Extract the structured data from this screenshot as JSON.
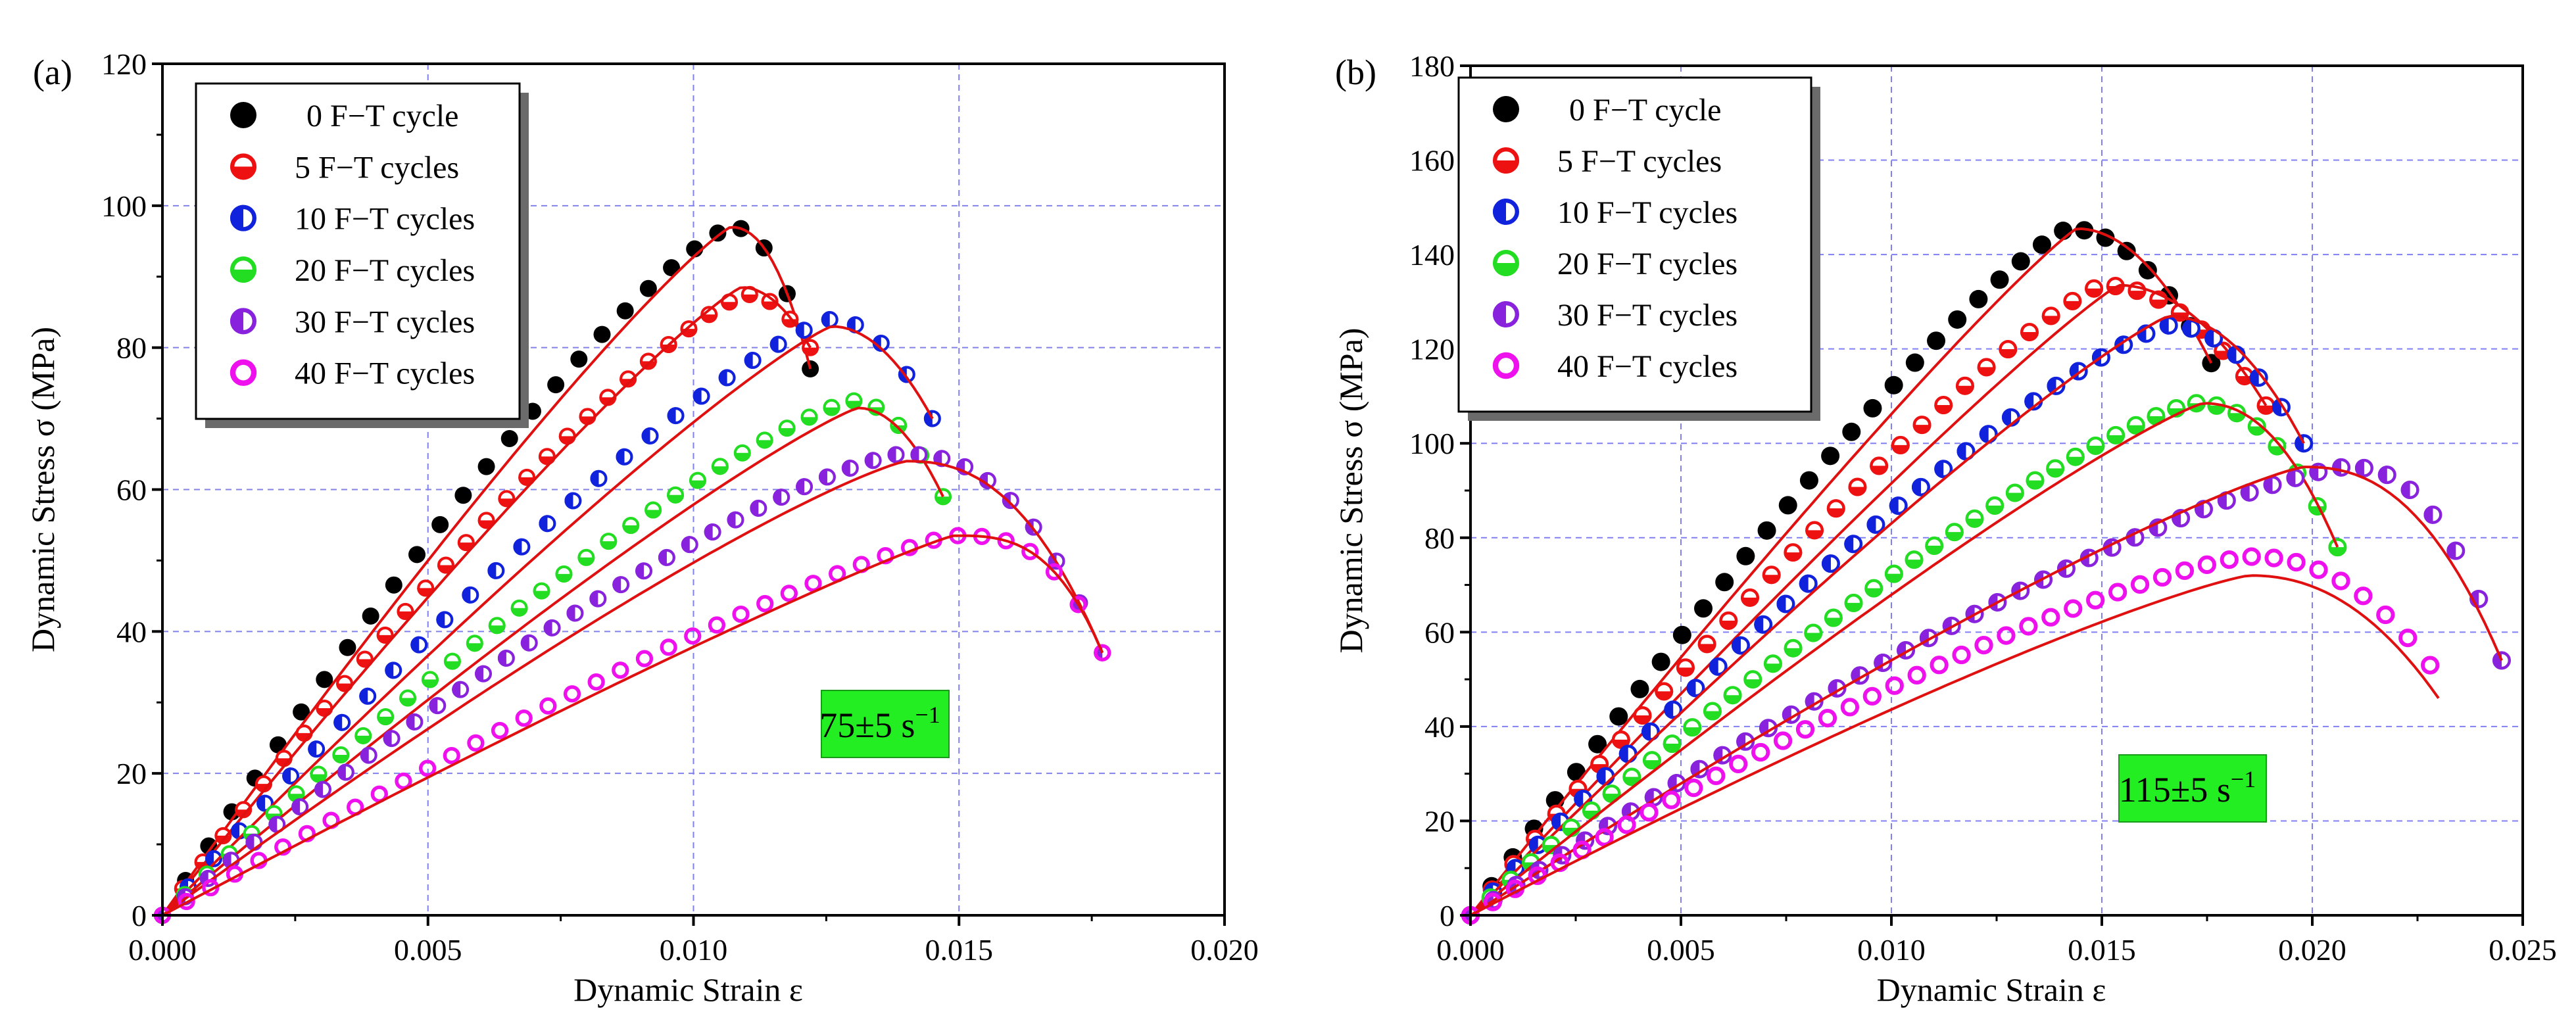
{
  "chart_data": [
    {
      "type": "scatter",
      "panel_label": "(a)",
      "xlabel": "Dynamic Strain ε",
      "ylabel": "Dynamic Stress σ (MPa)",
      "xlim": [
        0,
        0.02
      ],
      "ylim": [
        0,
        120
      ],
      "xticks": [
        0,
        0.005,
        0.01,
        0.015,
        0.02
      ],
      "xtick_labels": [
        "0.000",
        "0.005",
        "0.010",
        "0.015",
        "0.020"
      ],
      "yticks": [
        0,
        20,
        40,
        60,
        80,
        100,
        120
      ],
      "ytick_labels": [
        "0",
        "20",
        "40",
        "60",
        "80",
        "100",
        "120"
      ],
      "grid": true,
      "legend_position": "top-left",
      "annotation": {
        "text": "75±5 s",
        "superscript": "−1",
        "background": "#22ee22"
      },
      "series": [
        {
          "name": "0 F−T cycle",
          "marker": "filled",
          "color": "#000000",
          "peak": [
            0.0107,
            97
          ],
          "end": [
            0.0122,
            77
          ]
        },
        {
          "name": "5 F−T cycles",
          "marker": "half-bottom",
          "color": "#ee1111",
          "peak": [
            0.011,
            87.5
          ],
          "end": [
            0.0122,
            80
          ]
        },
        {
          "name": "10 F−T cycles",
          "marker": "half-left",
          "color": "#1122dd",
          "peak": [
            0.0126,
            84
          ],
          "end": [
            0.0145,
            70
          ]
        },
        {
          "name": "20 F−T cycles",
          "marker": "half-bottom",
          "color": "#22dd22",
          "peak": [
            0.013,
            72.5
          ],
          "end": [
            0.0147,
            59
          ]
        },
        {
          "name": "30 F−T cycles",
          "marker": "half-left",
          "color": "#8822dd",
          "peak": [
            0.0139,
            65
          ],
          "end": [
            0.0177,
            37
          ]
        },
        {
          "name": "40 F−T cycles",
          "marker": "ring",
          "color": "#ee11ee",
          "peak": [
            0.0149,
            53.5
          ],
          "end": [
            0.0177,
            37
          ]
        }
      ]
    },
    {
      "type": "scatter",
      "panel_label": "(b)",
      "xlabel": "Dynamic Strain ε",
      "ylabel": "Dynamic Stress σ (MPa)",
      "xlim": [
        0,
        0.025
      ],
      "ylim": [
        0,
        180
      ],
      "xticks": [
        0,
        0.005,
        0.01,
        0.015,
        0.02,
        0.025
      ],
      "xtick_labels": [
        "0.000",
        "0.005",
        "0.010",
        "0.015",
        "0.020",
        "0.025"
      ],
      "yticks": [
        0,
        20,
        40,
        60,
        80,
        100,
        120,
        140,
        160,
        180
      ],
      "ytick_labels": [
        "0",
        "20",
        "40",
        "60",
        "80",
        "100",
        "120",
        "140",
        "160",
        "180"
      ],
      "grid": true,
      "legend_position": "top-left",
      "annotation": {
        "text": "115±5 s",
        "superscript": "−1",
        "background": "#22ee22"
      },
      "series": [
        {
          "name": "0 F−T cycle",
          "marker": "filled",
          "color": "#000000",
          "peak": [
            0.0142,
            145.5
          ],
          "end": [
            0.0176,
            117
          ]
        },
        {
          "name": "5 F−T cycles",
          "marker": "half-bottom",
          "color": "#ee1111",
          "peak": [
            0.015,
            133.5
          ],
          "end": [
            0.0189,
            108
          ]
        },
        {
          "name": "10 F−T cycles",
          "marker": "half-left",
          "color": "#1122dd",
          "peak": [
            0.0166,
            125
          ],
          "end": [
            0.0198,
            100
          ]
        },
        {
          "name": "20 F−T cycles",
          "marker": "half-bottom",
          "color": "#22dd22",
          "peak": [
            0.0172,
            108.5
          ],
          "end": [
            0.0206,
            78
          ]
        },
        {
          "name": "30 F−T cycles",
          "marker": "half-left",
          "color": "#8822dd",
          "peak": [
            0.0208,
            95
          ],
          "end": [
            0.0245,
            54
          ]
        },
        {
          "name": "40 F−T cycles",
          "marker": "ring",
          "color": "#ee11ee",
          "peak": [
            0.0185,
            76
          ],
          "end": [
            0.0228,
            53
          ]
        }
      ]
    }
  ]
}
